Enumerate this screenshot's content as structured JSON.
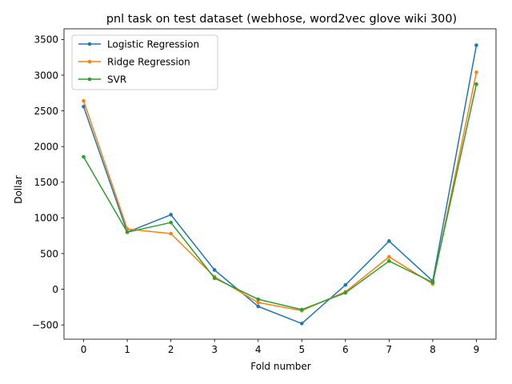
{
  "chart_data": {
    "type": "line",
    "title": "pnl task on test dataset (webhose, word2vec glove wiki 300)",
    "xlabel": "Fold number",
    "ylabel": "Dollar",
    "x": [
      0,
      1,
      2,
      3,
      4,
      5,
      6,
      7,
      8,
      9
    ],
    "xticks": [
      "0",
      "1",
      "2",
      "3",
      "4",
      "5",
      "6",
      "7",
      "8",
      "9"
    ],
    "yticks": [
      "−500",
      "0",
      "500",
      "1000",
      "1500",
      "2000",
      "2500",
      "3000",
      "3500"
    ],
    "ytick_values": [
      -500,
      0,
      500,
      1000,
      1500,
      2000,
      2500,
      3000,
      3500
    ],
    "xlim": [
      -0.45,
      9.45
    ],
    "ylim": [
      -700,
      3650
    ],
    "grid": false,
    "legend_position": "top-left",
    "series": [
      {
        "name": "Logistic Regression",
        "color": "#1f77b4",
        "values": [
          2560,
          800,
          1045,
          270,
          -240,
          -480,
          60,
          675,
          115,
          3420
        ]
      },
      {
        "name": "Ridge Regression",
        "color": "#ff7f0e",
        "values": [
          2640,
          845,
          780,
          175,
          -185,
          -300,
          -35,
          455,
          75,
          3040
        ]
      },
      {
        "name": "SVR",
        "color": "#2ca02c",
        "values": [
          1855,
          800,
          935,
          155,
          -140,
          -285,
          -50,
          395,
          95,
          2875
        ]
      }
    ]
  }
}
